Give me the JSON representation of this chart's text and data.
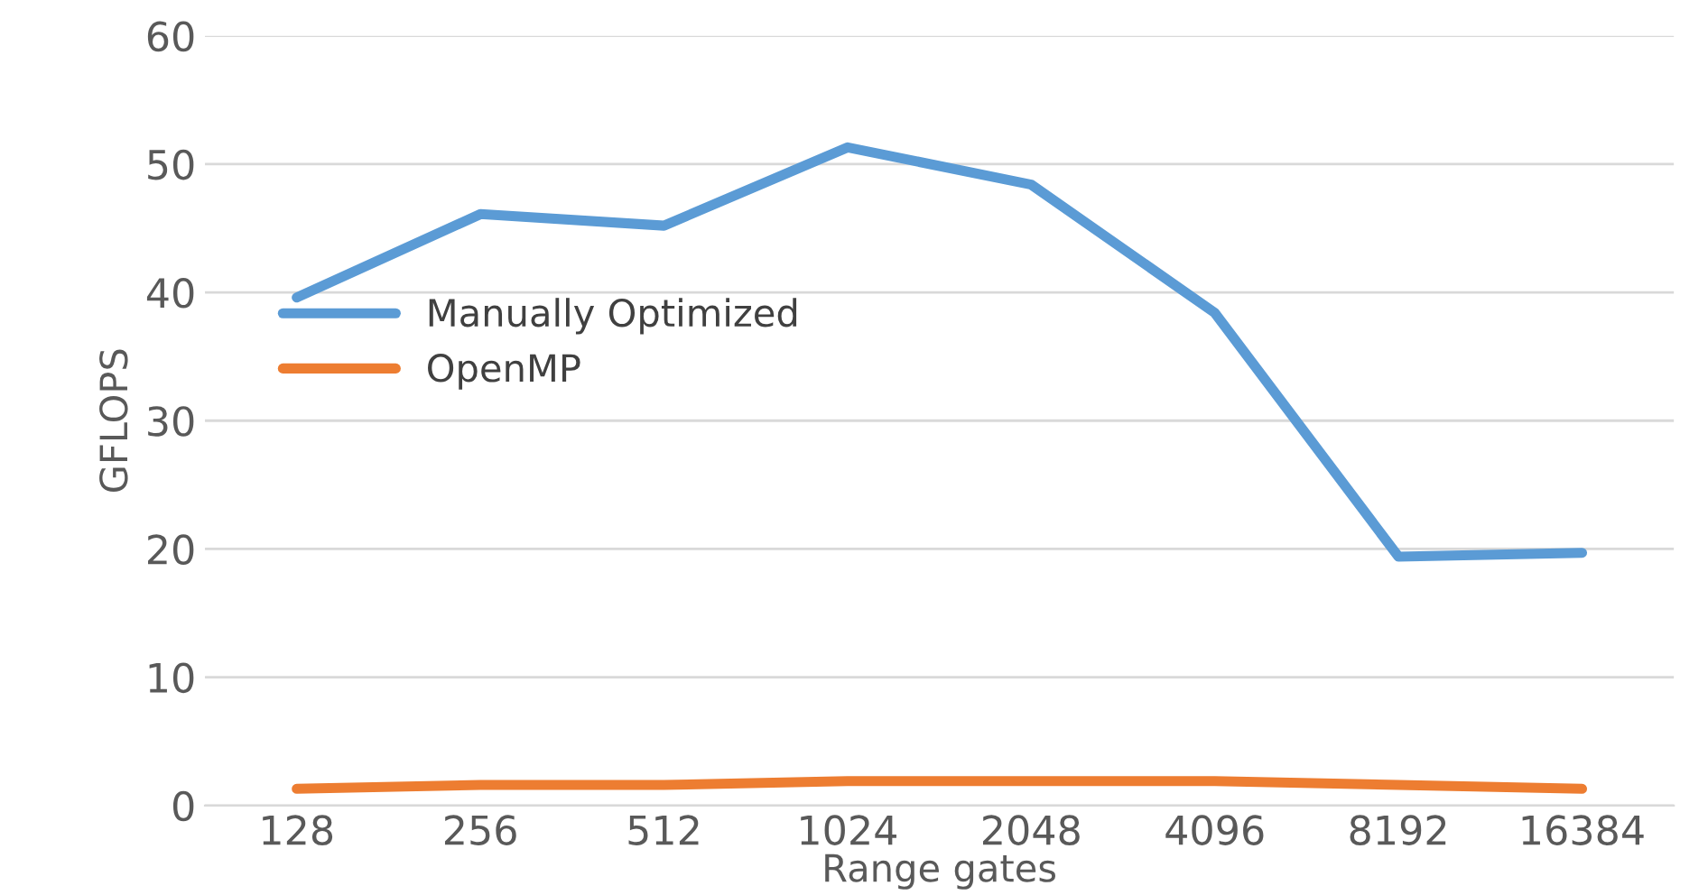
{
  "chart_data": {
    "type": "line",
    "xlabel": "Range gates",
    "ylabel": "GFLOPS",
    "categories": [
      "128",
      "256",
      "512",
      "1024",
      "2048",
      "4096",
      "8192",
      "16384"
    ],
    "series": [
      {
        "name": "Manually Optimized",
        "color": "#5b9bd5",
        "values": [
          39.6,
          46.1,
          45.2,
          51.3,
          48.4,
          38.4,
          19.4,
          19.7
        ]
      },
      {
        "name": "OpenMP",
        "color": "#ed7d31",
        "values": [
          1.3,
          1.6,
          1.6,
          1.9,
          1.9,
          1.9,
          1.6,
          1.3
        ]
      }
    ],
    "ylim": [
      0,
      60
    ],
    "yticks": [
      0,
      10,
      20,
      30,
      40,
      50,
      60
    ],
    "grid": "y",
    "legend": "left",
    "marker": "none",
    "line_style": "solid"
  }
}
